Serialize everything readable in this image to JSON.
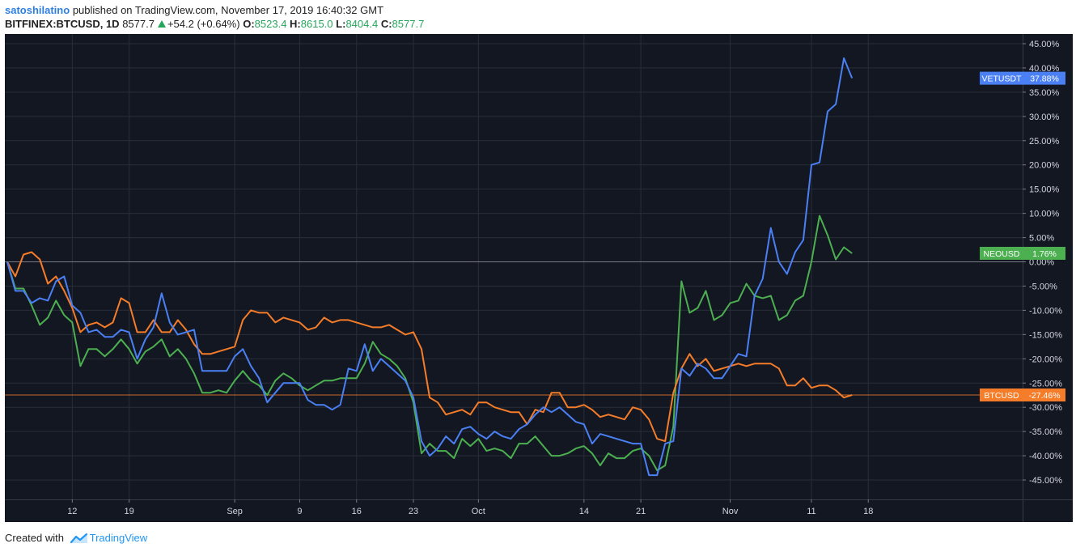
{
  "header": {
    "author": "satoshilatino",
    "published_text": "published on TradingView.com, November 17, 2019 16:40:32 GMT",
    "symbol": "BITFINEX:BTCUSD, 1D",
    "last_price": "8577.7",
    "change": "+54.2 (+0.64%)",
    "open_label": "O:",
    "open": "8523.4",
    "high_label": "H:",
    "high": "8615.0",
    "low_label": "L:",
    "low": "8404.4",
    "close_label": "C:",
    "close": "8577.7"
  },
  "footer": {
    "created_with": "Created with",
    "brand": "TradingView"
  },
  "colors": {
    "background": "#131722",
    "grid": "#2a2e39",
    "axis_text": "#d1d4dc",
    "VETUSDT": "#4a80f4",
    "NEOUSD": "#4caf50",
    "BTCUSD": "#f57c28",
    "zero_line": "#787b86"
  },
  "chart_data": {
    "type": "line",
    "y_unit": "%",
    "ylim": [
      -49,
      47
    ],
    "y_ticks": [
      45,
      40,
      35,
      30,
      25,
      20,
      15,
      10,
      5,
      0,
      -5,
      -10,
      -15,
      -20,
      -25,
      -30,
      -35,
      -40,
      -45
    ],
    "y_tick_labels": [
      "45.00%",
      "40.00%",
      "35.00%",
      "30.00%",
      "25.00%",
      "20.00%",
      "15.00%",
      "10.00%",
      "5.00%",
      "0.00%",
      "-5.00%",
      "-10.00%",
      "-15.00%",
      "-20.00%",
      "-25.00%",
      "-30.00%",
      "-35.00%",
      "-40.00%",
      "-45.00%"
    ],
    "x_range": [
      0,
      125
    ],
    "x_ticks": [
      {
        "day": 8,
        "label": "12"
      },
      {
        "day": 15,
        "label": "19"
      },
      {
        "day": 28,
        "label": "Sep"
      },
      {
        "day": 36,
        "label": "9"
      },
      {
        "day": 43,
        "label": "16"
      },
      {
        "day": 50,
        "label": "23"
      },
      {
        "day": 58,
        "label": "Oct"
      },
      {
        "day": 71,
        "label": "14"
      },
      {
        "day": 78,
        "label": "21"
      },
      {
        "day": 89,
        "label": "Nov"
      },
      {
        "day": 99,
        "label": "11"
      },
      {
        "day": 106,
        "label": "18"
      }
    ],
    "grid": true,
    "series": [
      {
        "name": "VETUSDT",
        "color": "#4a80f4",
        "last_label": "37.88%",
        "values": [
          0,
          -6,
          -6,
          -8.5,
          -7.5,
          -8,
          -4,
          -3,
          -9,
          -10.5,
          -14.5,
          -14,
          -15.5,
          -15.5,
          -14,
          -14.5,
          -20,
          -16,
          -13.5,
          -6.5,
          -12.5,
          -15,
          -14.5,
          -14,
          -22.5,
          -22.5,
          -22.5,
          -22.5,
          -19.5,
          -18,
          -21.5,
          -24,
          -29,
          -27,
          -25,
          -25,
          -25,
          -28.5,
          -29.5,
          -29.5,
          -30.5,
          -29.5,
          -22,
          -22.5,
          -17,
          -22.5,
          -20,
          -21.5,
          -23,
          -24.5,
          -28,
          -37,
          -40,
          -38.5,
          -36,
          -37.5,
          -34.5,
          -34,
          -35.5,
          -36.5,
          -35,
          -36,
          -36.5,
          -34.5,
          -33.5,
          -31.5,
          -30,
          -31,
          -30,
          -31.5,
          -33,
          -33.5,
          -37.5,
          -35.5,
          -36,
          -36.5,
          -37,
          -37.5,
          -37.5,
          -44,
          -44,
          -37.5,
          -37,
          -22,
          -23.5,
          -21,
          -22,
          -24,
          -24,
          -21.5,
          -19,
          -19.5,
          -7,
          -3.5,
          7,
          0,
          -2.5,
          2,
          4.5,
          20,
          20.5,
          31,
          32.5,
          42,
          37.88
        ]
      },
      {
        "name": "NEOUSD",
        "color": "#4caf50",
        "last_label": "1.76%",
        "values": [
          0,
          -5.5,
          -5.5,
          -9,
          -13,
          -11.5,
          -8,
          -11,
          -12.5,
          -21.5,
          -18,
          -18,
          -19.5,
          -18,
          -16,
          -18,
          -21,
          -18.5,
          -17.5,
          -16,
          -19.5,
          -18,
          -20,
          -23,
          -27,
          -27,
          -26.5,
          -27,
          -24.5,
          -22.5,
          -24.5,
          -25.5,
          -27.5,
          -24.5,
          -23,
          -24,
          -25.5,
          -26.5,
          -25.5,
          -24.5,
          -24.5,
          -24,
          -24,
          -24,
          -21,
          -16.5,
          -19,
          -20,
          -21.5,
          -24,
          -29,
          -39.5,
          -37.5,
          -39,
          -39,
          -40.5,
          -36.5,
          -38,
          -36.5,
          -39,
          -38.5,
          -39,
          -40.5,
          -37.5,
          -37.5,
          -36,
          -38,
          -40,
          -40,
          -39.5,
          -38.5,
          -38,
          -39.5,
          -42,
          -39.5,
          -40.5,
          -40.5,
          -39,
          -38.5,
          -40,
          -43,
          -42,
          -34,
          -4,
          -10.5,
          -9.5,
          -6,
          -12,
          -11,
          -8.5,
          -8,
          -4.5,
          -7,
          -7.5,
          -7,
          -12,
          -11,
          -8,
          -7,
          0,
          9.5,
          5.5,
          0.5,
          3,
          1.76
        ]
      },
      {
        "name": "BTCUSD",
        "color": "#f57c28",
        "last_label": "-27.46%",
        "values": [
          0,
          -3,
          1.5,
          2,
          0.5,
          -4.5,
          -3,
          -6,
          -9.5,
          -14.5,
          -13,
          -12.5,
          -13.5,
          -12.5,
          -7.5,
          -8.5,
          -14.5,
          -14.5,
          -12,
          -14.5,
          -14.5,
          -12,
          -14,
          -17,
          -19,
          -19,
          -18.5,
          -18,
          -17.5,
          -12,
          -10,
          -10.5,
          -10.5,
          -12.5,
          -11.5,
          -12,
          -12.5,
          -14,
          -13.5,
          -11.5,
          -12.5,
          -12,
          -12,
          -12.5,
          -13,
          -13.5,
          -13.5,
          -13,
          -14,
          -15,
          -14.5,
          -18,
          -28,
          -29,
          -31.5,
          -31,
          -30.5,
          -31.5,
          -29,
          -29,
          -30,
          -30.5,
          -31,
          -31,
          -33.5,
          -30.5,
          -31,
          -27,
          -27,
          -30,
          -30,
          -29.5,
          -30.5,
          -32,
          -31.5,
          -32,
          -32.5,
          -30,
          -30.5,
          -32.5,
          -36.5,
          -37,
          -27,
          -22,
          -19,
          -21.5,
          -20,
          -22.5,
          -22,
          -21.5,
          -21,
          -21.5,
          -21,
          -21,
          -21,
          -22,
          -25.5,
          -25.5,
          -24,
          -26,
          -25.5,
          -25.5,
          -26.5,
          -28,
          -27.46
        ]
      }
    ]
  }
}
